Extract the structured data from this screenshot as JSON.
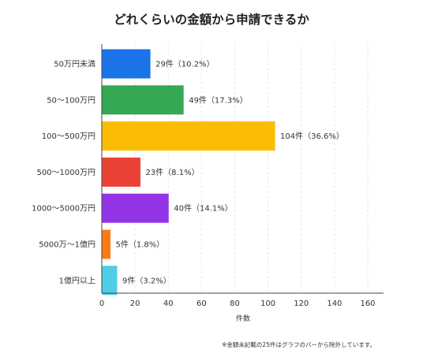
{
  "chart_data": {
    "type": "bar",
    "orientation": "horizontal",
    "title": "どれくらいの金額から申請できるか",
    "categories": [
      "50万円未満",
      "50〜100万円",
      "100〜500万円",
      "500〜1000万円",
      "1000〜5000万円",
      "5000万〜1億円",
      "1億円以上"
    ],
    "values": [
      29,
      49,
      104,
      23,
      40,
      5,
      9
    ],
    "data_labels": [
      "29件（10.2%）",
      "49件（17.3%）",
      "104件（36.6%）",
      "23件（8.1%）",
      "40件（14.1%）",
      "5件（1.8%）",
      "9件（3.2%）"
    ],
    "colors": [
      "#1a73e8",
      "#34a853",
      "#fbbc04",
      "#ea4335",
      "#9334e6",
      "#fa7b17",
      "#4ecde6"
    ],
    "xlabel": "件数",
    "ylabel": "",
    "xlim": [
      0,
      160
    ],
    "xticks": [
      0,
      20,
      40,
      60,
      80,
      100,
      120,
      140,
      160
    ],
    "grid": true,
    "legend": "none"
  },
  "footnote": "※金額未記載の25件はグラフのバーから除外しています。"
}
